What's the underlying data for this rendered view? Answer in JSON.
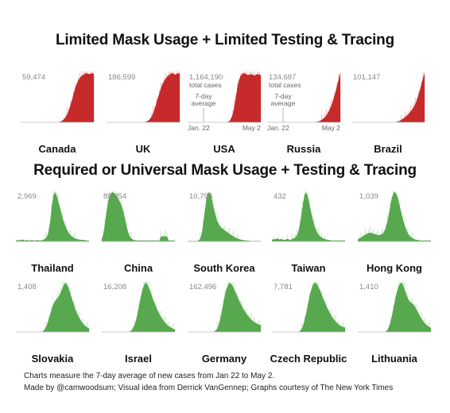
{
  "titles": {
    "row_red": "Limited Mask Usage + Limited Testing & Tracing",
    "row_green": "Required or Universal Mask Usage + Testing & Tracing"
  },
  "footnotes": {
    "line1": "Charts measure the 7-day average of new cases from Jan 22 to May 2.",
    "line2": "Made by @camwoodsum; Visual idea from Derrick VanGennep; Graphs courtesy of The New York Times"
  },
  "colors": {
    "red": "#c62a2a",
    "green": "#57a84f",
    "axis": "#bbbbbb"
  },
  "chart_data": [
    {
      "type": "area",
      "group": "red",
      "country": "Canada",
      "peak_label": "59,474",
      "color": "#c62a2a",
      "x_range": [
        "Jan 22",
        "May 2"
      ],
      "shape": [
        0,
        0,
        0,
        0,
        0,
        0,
        0,
        0,
        0,
        0,
        0,
        0,
        0,
        0,
        0,
        0,
        0,
        0,
        0,
        0,
        0,
        0,
        0,
        0,
        0,
        0.01,
        0.02,
        0.04,
        0.07,
        0.11,
        0.17,
        0.25,
        0.35,
        0.46,
        0.58,
        0.69,
        0.78,
        0.85,
        0.9,
        0.94,
        0.96,
        0.98,
        1,
        0.99,
        0.98,
        0.99,
        1,
        0.98
      ]
    },
    {
      "type": "area",
      "group": "red",
      "country": "UK",
      "peak_label": "186,599",
      "color": "#c62a2a",
      "x_range": [
        "Jan 22",
        "May 2"
      ],
      "shape": [
        0,
        0,
        0,
        0,
        0,
        0,
        0,
        0,
        0,
        0,
        0,
        0,
        0,
        0,
        0,
        0,
        0,
        0,
        0,
        0,
        0,
        0,
        0,
        0,
        0,
        0.01,
        0.02,
        0.04,
        0.07,
        0.12,
        0.19,
        0.28,
        0.39,
        0.5,
        0.6,
        0.7,
        0.78,
        0.84,
        0.89,
        0.93,
        0.96,
        0.98,
        1,
        0.99,
        0.97,
        0.98,
        1,
        0.99
      ]
    },
    {
      "type": "area",
      "group": "red",
      "country": "USA",
      "peak_label": "1,164,190",
      "total_cases_label": "total cases",
      "avg_label": "7-day\naverage",
      "date_start": "Jan. 22",
      "date_end": "May 2",
      "color": "#c62a2a",
      "x_range": [
        "Jan 22",
        "May 2"
      ],
      "shape": [
        0,
        0,
        0,
        0,
        0,
        0,
        0,
        0,
        0,
        0,
        0,
        0,
        0,
        0,
        0,
        0,
        0,
        0,
        0,
        0,
        0,
        0,
        0,
        0,
        0,
        0,
        0.01,
        0.03,
        0.08,
        0.17,
        0.32,
        0.52,
        0.72,
        0.86,
        0.94,
        0.98,
        1,
        0.99,
        0.97,
        0.96,
        0.97,
        0.98,
        0.96,
        0.95,
        0.97,
        0.98,
        0.97,
        0.96
      ]
    },
    {
      "type": "area",
      "group": "red",
      "country": "Russia",
      "peak_label": "134,687",
      "total_cases_label": "total cases",
      "avg_label": "7-day\naverage",
      "date_start": "Jan. 22",
      "date_end": "May 2",
      "color": "#c62a2a",
      "x_range": [
        "Jan 22",
        "May 2"
      ],
      "shape": [
        0,
        0,
        0,
        0,
        0,
        0,
        0,
        0,
        0,
        0,
        0,
        0,
        0,
        0,
        0,
        0,
        0,
        0,
        0,
        0,
        0,
        0,
        0,
        0,
        0,
        0,
        0,
        0,
        0,
        0,
        0,
        0,
        0.01,
        0.02,
        0.03,
        0.05,
        0.07,
        0.1,
        0.14,
        0.19,
        0.25,
        0.32,
        0.41,
        0.51,
        0.63,
        0.76,
        0.88,
        1
      ]
    },
    {
      "type": "area",
      "group": "red",
      "country": "Brazil",
      "peak_label": "101,147",
      "color": "#c62a2a",
      "x_range": [
        "Jan 22",
        "May 2"
      ],
      "shape": [
        0,
        0,
        0,
        0,
        0,
        0,
        0,
        0,
        0,
        0,
        0,
        0,
        0,
        0,
        0,
        0,
        0,
        0,
        0,
        0,
        0,
        0,
        0,
        0,
        0,
        0,
        0,
        0,
        0,
        0.01,
        0.02,
        0.03,
        0.05,
        0.07,
        0.09,
        0.12,
        0.15,
        0.18,
        0.22,
        0.26,
        0.31,
        0.37,
        0.45,
        0.55,
        0.66,
        0.78,
        0.9,
        1
      ]
    },
    {
      "type": "area",
      "group": "green",
      "country": "Thailand",
      "peak_label": "2,969",
      "color": "#57a84f",
      "x_range": [
        "Jan 22",
        "May 2"
      ],
      "shape": [
        0.02,
        0.03,
        0.02,
        0.03,
        0.04,
        0.03,
        0.02,
        0.03,
        0.02,
        0.02,
        0.03,
        0.02,
        0.02,
        0.02,
        0.03,
        0.02,
        0.02,
        0.03,
        0.04,
        0.06,
        0.1,
        0.2,
        0.4,
        0.7,
        0.92,
        1,
        0.95,
        0.85,
        0.72,
        0.6,
        0.48,
        0.38,
        0.3,
        0.23,
        0.17,
        0.13,
        0.1,
        0.08,
        0.06,
        0.05,
        0.04,
        0.04,
        0.03,
        0.03,
        0.03,
        0.02,
        0.02,
        0.02
      ]
    },
    {
      "type": "area",
      "group": "green",
      "country": "China",
      "peak_label": "88,954",
      "color": "#57a84f",
      "x_range": [
        "Jan 22",
        "May 2"
      ],
      "shape": [
        0.05,
        0.15,
        0.35,
        0.6,
        0.8,
        0.92,
        0.98,
        1,
        0.98,
        0.95,
        0.9,
        0.85,
        0.78,
        0.7,
        0.6,
        0.45,
        0.3,
        0.18,
        0.1,
        0.06,
        0.04,
        0.03,
        0.02,
        0.02,
        0.02,
        0.02,
        0.02,
        0.02,
        0.02,
        0.02,
        0.02,
        0.02,
        0.02,
        0.02,
        0.02,
        0.02,
        0.02,
        0.02,
        0.1,
        0.1,
        0.1,
        0.1,
        0.1,
        0.02,
        0.02,
        0.02,
        0.02,
        0.02
      ]
    },
    {
      "type": "area",
      "group": "green",
      "country": "South Korea",
      "peak_label": "10,793",
      "color": "#57a84f",
      "x_range": [
        "Jan 22",
        "May 2"
      ],
      "shape": [
        0.01,
        0.01,
        0.01,
        0.01,
        0.01,
        0.01,
        0.01,
        0.02,
        0.05,
        0.15,
        0.35,
        0.62,
        0.85,
        0.97,
        1,
        0.93,
        0.8,
        0.65,
        0.52,
        0.42,
        0.35,
        0.3,
        0.27,
        0.25,
        0.22,
        0.2,
        0.18,
        0.15,
        0.13,
        0.11,
        0.09,
        0.07,
        0.06,
        0.05,
        0.04,
        0.03,
        0.03,
        0.02,
        0.02,
        0.02,
        0.01,
        0.01,
        0.01,
        0.01,
        0.01,
        0.01,
        0.01,
        0.01
      ]
    },
    {
      "type": "area",
      "group": "green",
      "country": "Taiwan",
      "peak_label": "432",
      "color": "#57a84f",
      "x_range": [
        "Jan 22",
        "May 2"
      ],
      "shape": [
        0.03,
        0.05,
        0.04,
        0.06,
        0.05,
        0.04,
        0.05,
        0.04,
        0.03,
        0.04,
        0.05,
        0.04,
        0.03,
        0.05,
        0.06,
        0.08,
        0.12,
        0.2,
        0.35,
        0.55,
        0.78,
        0.95,
        1,
        0.92,
        0.78,
        0.62,
        0.48,
        0.36,
        0.26,
        0.19,
        0.14,
        0.1,
        0.08,
        0.06,
        0.05,
        0.04,
        0.03,
        0.03,
        0.02,
        0.02,
        0.02,
        0.02,
        0.02,
        0.02,
        0.02,
        0.02,
        0.02,
        0.02
      ]
    },
    {
      "type": "area",
      "group": "green",
      "country": "Hong Kong",
      "peak_label": "1,039",
      "color": "#57a84f",
      "x_range": [
        "Jan 22",
        "May 2"
      ],
      "shape": [
        0.04,
        0.06,
        0.08,
        0.1,
        0.12,
        0.14,
        0.16,
        0.17,
        0.18,
        0.17,
        0.16,
        0.15,
        0.14,
        0.13,
        0.13,
        0.14,
        0.16,
        0.2,
        0.28,
        0.4,
        0.56,
        0.74,
        0.9,
        0.99,
        1,
        0.95,
        0.85,
        0.72,
        0.58,
        0.45,
        0.34,
        0.25,
        0.18,
        0.13,
        0.09,
        0.07,
        0.05,
        0.04,
        0.03,
        0.03,
        0.02,
        0.02,
        0.02,
        0.02,
        0.02,
        0.02,
        0.02,
        0.02
      ]
    },
    {
      "type": "area",
      "group": "green",
      "country": "Slovakia",
      "peak_label": "1,408",
      "color": "#57a84f",
      "x_range": [
        "Jan 22",
        "May 2"
      ],
      "shape": [
        0,
        0,
        0,
        0,
        0,
        0,
        0,
        0,
        0,
        0,
        0,
        0,
        0,
        0,
        0,
        0,
        0,
        0.01,
        0.03,
        0.08,
        0.15,
        0.25,
        0.36,
        0.47,
        0.56,
        0.62,
        0.66,
        0.7,
        0.75,
        0.82,
        0.9,
        0.97,
        1,
        0.96,
        0.88,
        0.78,
        0.68,
        0.58,
        0.48,
        0.4,
        0.33,
        0.27,
        0.22,
        0.18,
        0.14,
        0.11,
        0.09,
        0.07
      ]
    },
    {
      "type": "area",
      "group": "green",
      "country": "Israel",
      "peak_label": "16,208",
      "color": "#57a84f",
      "x_range": [
        "Jan 22",
        "May 2"
      ],
      "shape": [
        0,
        0,
        0,
        0,
        0,
        0,
        0,
        0,
        0,
        0,
        0,
        0,
        0,
        0,
        0,
        0,
        0,
        0,
        0.01,
        0.03,
        0.07,
        0.14,
        0.24,
        0.38,
        0.54,
        0.7,
        0.84,
        0.94,
        1,
        0.98,
        0.92,
        0.84,
        0.75,
        0.66,
        0.58,
        0.5,
        0.43,
        0.37,
        0.31,
        0.26,
        0.22,
        0.18,
        0.15,
        0.12,
        0.1,
        0.08,
        0.06,
        0.05
      ]
    },
    {
      "type": "area",
      "group": "green",
      "country": "Germany",
      "peak_label": "162,496",
      "color": "#57a84f",
      "x_range": [
        "Jan 22",
        "May 2"
      ],
      "shape": [
        0,
        0,
        0,
        0,
        0,
        0,
        0,
        0,
        0,
        0,
        0,
        0,
        0,
        0,
        0,
        0,
        0,
        0.01,
        0.03,
        0.07,
        0.15,
        0.27,
        0.43,
        0.6,
        0.76,
        0.88,
        0.96,
        1,
        0.98,
        0.93,
        0.86,
        0.79,
        0.72,
        0.65,
        0.58,
        0.52,
        0.46,
        0.41,
        0.36,
        0.32,
        0.28,
        0.25,
        0.22,
        0.2,
        0.18,
        0.16,
        0.15,
        0.14
      ]
    },
    {
      "type": "area",
      "group": "green",
      "country": "Czech Republic",
      "peak_label": "7,781",
      "color": "#57a84f",
      "x_range": [
        "Jan 22",
        "May 2"
      ],
      "shape": [
        0,
        0,
        0,
        0,
        0,
        0,
        0,
        0,
        0,
        0,
        0,
        0,
        0,
        0,
        0,
        0,
        0,
        0,
        0.02,
        0.06,
        0.13,
        0.24,
        0.38,
        0.54,
        0.7,
        0.83,
        0.93,
        0.99,
        1,
        0.97,
        0.91,
        0.84,
        0.76,
        0.68,
        0.6,
        0.53,
        0.46,
        0.4,
        0.34,
        0.29,
        0.25,
        0.21,
        0.18,
        0.15,
        0.13,
        0.11,
        0.1,
        0.09
      ]
    },
    {
      "type": "area",
      "group": "green",
      "country": "Lithuania",
      "peak_label": "1,410",
      "color": "#57a84f",
      "x_range": [
        "Jan 22",
        "May 2"
      ],
      "shape": [
        0,
        0,
        0,
        0,
        0,
        0,
        0,
        0,
        0,
        0,
        0,
        0,
        0,
        0,
        0,
        0,
        0,
        0,
        0.01,
        0.04,
        0.1,
        0.2,
        0.34,
        0.5,
        0.66,
        0.8,
        0.91,
        0.98,
        1,
        0.96,
        0.88,
        0.78,
        0.7,
        0.64,
        0.6,
        0.58,
        0.55,
        0.5,
        0.44,
        0.38,
        0.32,
        0.27,
        0.22,
        0.18,
        0.15,
        0.12,
        0.1,
        0.08
      ]
    }
  ]
}
